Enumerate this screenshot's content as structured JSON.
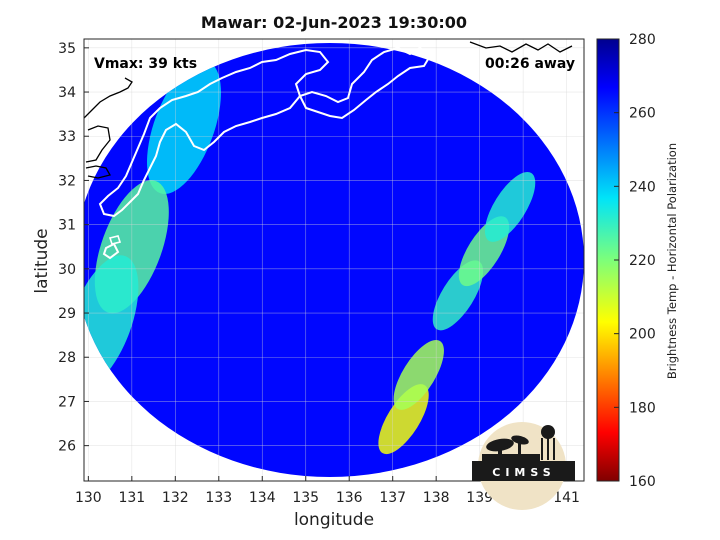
{
  "chart_data": {
    "type": "heatmap",
    "title": "Mawar: 02-Jun-2023 19:30:00",
    "xlabel": "longitude",
    "ylabel": "latitude",
    "xlim": [
      129.9,
      141.4
    ],
    "ylim": [
      25.2,
      35.2
    ],
    "x_ticks": [
      130,
      131,
      132,
      133,
      134,
      135,
      136,
      137,
      138,
      139,
      140,
      141
    ],
    "y_ticks": [
      26,
      27,
      28,
      29,
      30,
      31,
      32,
      33,
      34,
      35
    ],
    "grid": true,
    "colorbar": {
      "label": "Brightness Temp - Horizontal Polarization",
      "range": [
        160,
        280
      ],
      "ticks": [
        160,
        180,
        200,
        220,
        240,
        260,
        280
      ],
      "colormap": "jet",
      "position": "right"
    },
    "annotations": {
      "vmax": "Vmax: 39 kts",
      "away": "00:26 away"
    },
    "swath": {
      "background_temp": 266,
      "center_lon": 135.55,
      "center_lat": 30.2,
      "features": [
        {
          "description": "rainband",
          "lon": 137.25,
          "lat": 26.6,
          "temp": 205
        },
        {
          "description": "rainband",
          "lon": 137.6,
          "lat": 27.6,
          "temp": 215
        },
        {
          "description": "rainband",
          "lon": 138.5,
          "lat": 29.4,
          "temp": 230
        },
        {
          "description": "rainband",
          "lon": 139.1,
          "lat": 30.4,
          "temp": 222
        },
        {
          "description": "rainband",
          "lon": 139.7,
          "lat": 31.4,
          "temp": 232
        },
        {
          "description": "cloud band",
          "lon": 132.2,
          "lat": 33.2,
          "temp": 238
        },
        {
          "description": "cloud band",
          "lon": 131.0,
          "lat": 30.5,
          "temp": 225
        },
        {
          "description": "cloud band",
          "lon": 130.3,
          "lat": 28.8,
          "temp": 232
        }
      ]
    },
    "logo_text": "CIMSS"
  },
  "colors": {
    "background": "#ffffff",
    "coastline_land": "#ffffff",
    "coastline_outside": "#000000",
    "grid": "#d6d6d6"
  }
}
